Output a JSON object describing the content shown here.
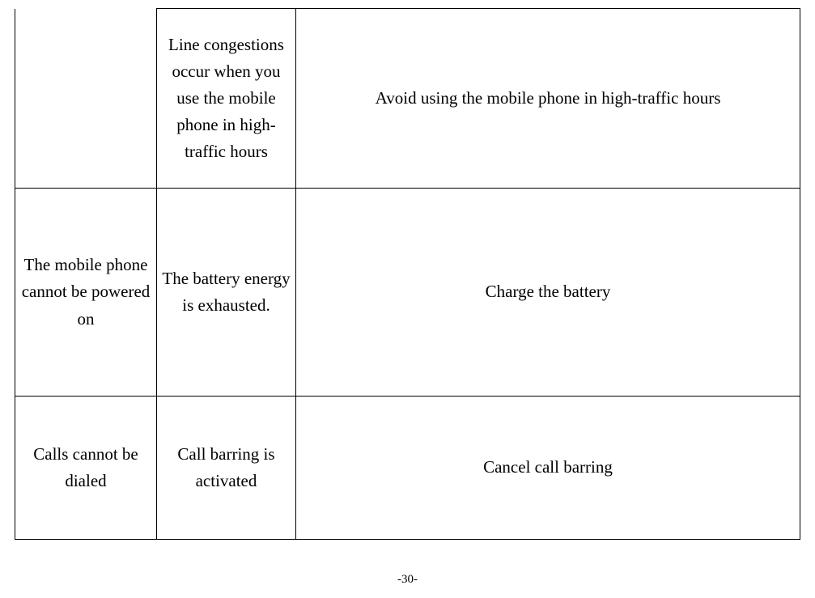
{
  "table": {
    "rows": [
      {
        "problem": "",
        "cause": "Line congestions occur when you use the mobile phone in high-traffic hours",
        "solution": "Avoid using the mobile phone in high-traffic hours"
      },
      {
        "problem": "The mobile phone cannot be powered on",
        "cause": "The battery energy is exhausted.",
        "solution": "Charge the battery"
      },
      {
        "problem": "Calls cannot be dialed",
        "cause": "Call barring is activated",
        "solution": "Cancel call barring"
      }
    ]
  },
  "pageNumber": "-30-"
}
